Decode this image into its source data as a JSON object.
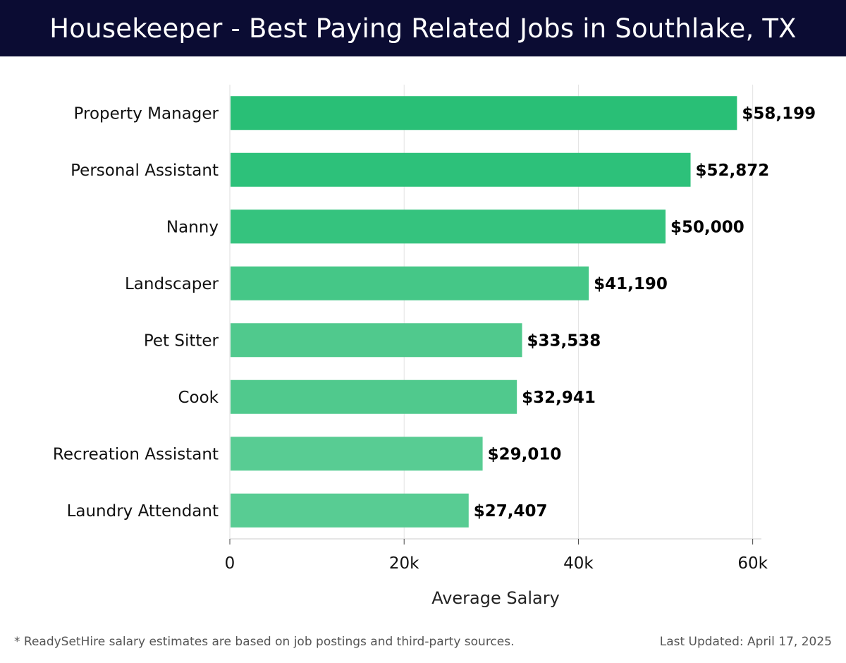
{
  "header": {
    "title": "Housekeeper - Best Paying Related Jobs in Southlake, TX"
  },
  "chart_data": {
    "type": "bar",
    "orientation": "horizontal",
    "categories": [
      "Property Manager",
      "Personal Assistant",
      "Nanny",
      "Landscaper",
      "Pet Sitter",
      "Cook",
      "Recreation Assistant",
      "Laundry Attendant"
    ],
    "values": [
      58199,
      52872,
      50000,
      41190,
      33538,
      32941,
      29010,
      27407
    ],
    "value_labels": [
      "$58,199",
      "$52,872",
      "$50,000",
      "$41,190",
      "$33,538",
      "$32,941",
      "$29,010",
      "$27,407"
    ],
    "bar_colors": [
      "#29bf76",
      "#2dc17a",
      "#35c37e",
      "#45c787",
      "#50c98d",
      "#50c98d",
      "#58cc93",
      "#58cc93"
    ],
    "xlabel": "Average Salary",
    "ylabel": "",
    "xlim": [
      0,
      61000
    ],
    "xticks": [
      0,
      20000,
      40000,
      60000
    ],
    "xtick_labels": [
      "0",
      "20k",
      "40k",
      "60k"
    ],
    "grid": true
  },
  "footer": {
    "note": "* ReadySetHire salary estimates are based on job postings and third-party sources.",
    "updated": "Last Updated: April 17, 2025"
  }
}
